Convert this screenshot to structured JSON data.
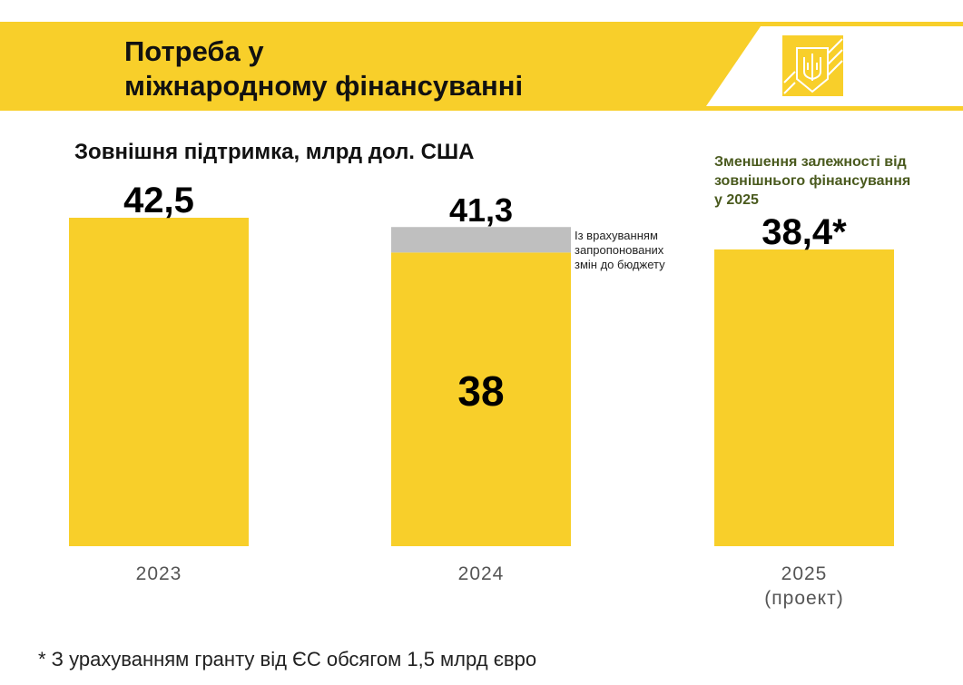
{
  "header": {
    "title_line1": "Потреба у",
    "title_line2": "міжнародному фінансуванні"
  },
  "note": {
    "line1": "Зменшення залежності від",
    "line2": "зовнішнього фінансування",
    "line3": "у 2025"
  },
  "footnote": "* З урахуванням гранту від ЄС обсягом 1,5 млрд євро",
  "colors": {
    "yellow": "#f8cf2a",
    "gray": "#bfbfbf",
    "note": "#4a5a1e"
  },
  "chart_data": {
    "type": "bar",
    "title": "Зовнішня підтримка, млрд дол. США",
    "categories": [
      "2023",
      "2024",
      "2025"
    ],
    "category_sublabels": [
      "",
      "",
      "(проект)"
    ],
    "series": [
      {
        "name": "base",
        "values": [
          42.5,
          38,
          38.4
        ],
        "labels": [
          "42,5",
          "38",
          "38,4*"
        ]
      },
      {
        "name": "Із врахуванням запропонованих змін до бюджету",
        "values": [
          0,
          3.3,
          0
        ],
        "total_label": "41,3"
      }
    ],
    "annotation": {
      "line1": "Із врахуванням",
      "line2": "запропонованих",
      "line3": "змін до бюджету"
    },
    "ylim": [
      0,
      42.5
    ]
  }
}
